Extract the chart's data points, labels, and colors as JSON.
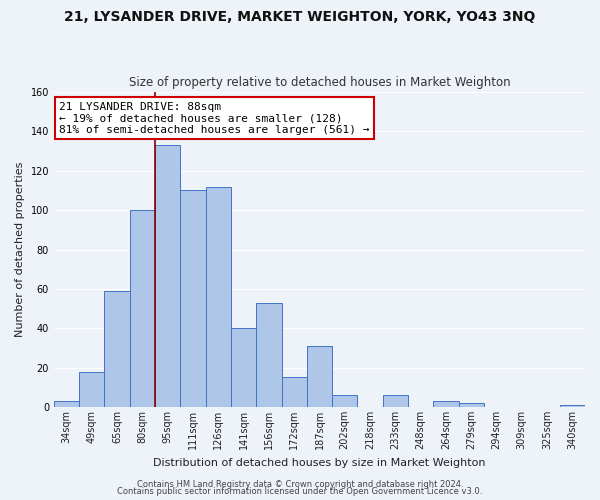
{
  "title": "21, LYSANDER DRIVE, MARKET WEIGHTON, YORK, YO43 3NQ",
  "subtitle": "Size of property relative to detached houses in Market Weighton",
  "xlabel": "Distribution of detached houses by size in Market Weighton",
  "ylabel": "Number of detached properties",
  "footer_line1": "Contains HM Land Registry data © Crown copyright and database right 2024.",
  "footer_line2": "Contains public sector information licensed under the Open Government Licence v3.0.",
  "bar_labels": [
    "34sqm",
    "49sqm",
    "65sqm",
    "80sqm",
    "95sqm",
    "111sqm",
    "126sqm",
    "141sqm",
    "156sqm",
    "172sqm",
    "187sqm",
    "202sqm",
    "218sqm",
    "233sqm",
    "248sqm",
    "264sqm",
    "279sqm",
    "294sqm",
    "309sqm",
    "325sqm",
    "340sqm"
  ],
  "bar_values": [
    3,
    18,
    59,
    100,
    133,
    110,
    112,
    40,
    53,
    15,
    31,
    6,
    0,
    6,
    0,
    3,
    2,
    0,
    0,
    0,
    1
  ],
  "bar_color": "#aec6e8",
  "bar_edge_color": "#4472c4",
  "highlight_bar_index": 4,
  "highlight_line_color": "#8b0000",
  "annotation_title": "21 LYSANDER DRIVE: 88sqm",
  "annotation_line1": "← 19% of detached houses are smaller (128)",
  "annotation_line2": "81% of semi-detached houses are larger (561) →",
  "annotation_box_color": "#ffffff",
  "annotation_box_edge_color": "#cc0000",
  "ylim": [
    0,
    160
  ],
  "yticks": [
    0,
    20,
    40,
    60,
    80,
    100,
    120,
    140,
    160
  ],
  "background_color": "#eef2f9",
  "grid_color": "#ffffff",
  "title_fontsize": 10,
  "subtitle_fontsize": 8.5,
  "axis_label_fontsize": 8,
  "tick_fontsize": 7,
  "annotation_fontsize": 8,
  "footer_fontsize": 6
}
